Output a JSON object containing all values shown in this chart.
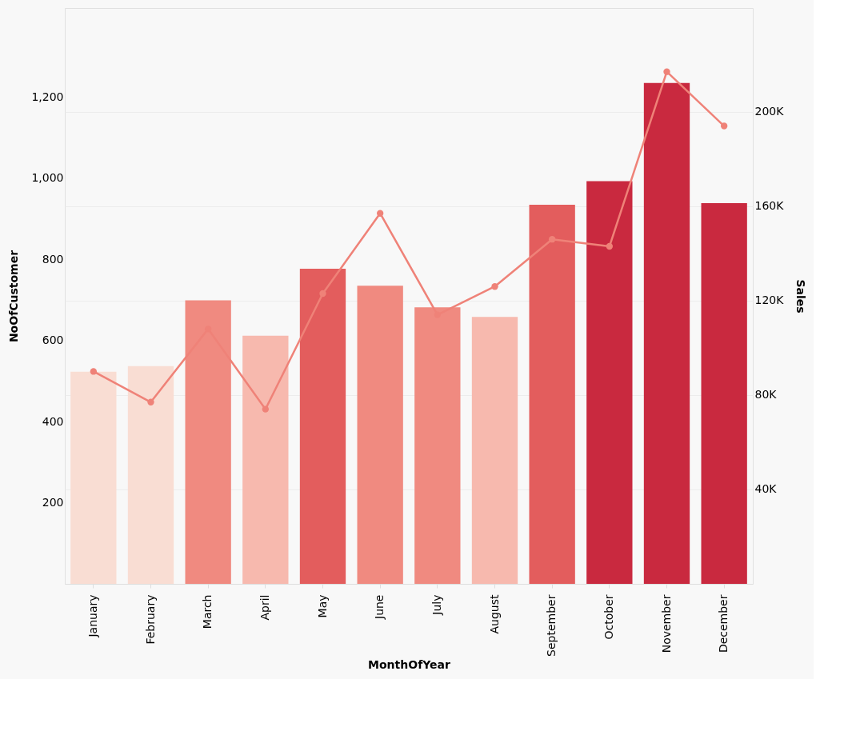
{
  "chart_data": {
    "type": "bar",
    "xlabel": "MonthOfYear",
    "ylabel": "NoOfCustomer",
    "y2label": "Sales",
    "categories": [
      "January",
      "February",
      "March",
      "April",
      "May",
      "June",
      "July",
      "August",
      "September",
      "October",
      "November",
      "December"
    ],
    "series": [
      {
        "colors": [
          "#f9ddd3",
          "#f9ddd3",
          "#f08a80",
          "#f7b9ae",
          "#e35d5d",
          "#f08a80",
          "#f08a80",
          "#f7b9ae",
          "#e35d5d",
          "#c9293f",
          "#c9293f",
          "#c9293f"
        ],
        "values": [
          523,
          537,
          699,
          612,
          777,
          735,
          682,
          658,
          935,
          993,
          1235,
          939
        ]
      },
      {
        "type": "line",
        "axis": "y2",
        "color": "#ef8278",
        "marker": "circle",
        "values": [
          90000,
          77000,
          108000,
          74000,
          123000,
          157000,
          114000,
          126000,
          146000,
          143000,
          217000,
          194000
        ]
      }
    ],
    "ylim": [
      0,
      1420
    ],
    "yticks": [
      200,
      400,
      600,
      800,
      {
        "value": 1000,
        "label": "1,000"
      },
      {
        "value": 1200,
        "label": "1,200"
      }
    ],
    "y2lim": [
      0,
      244000
    ],
    "y2ticks": [
      {
        "value": 40000,
        "label": "40K"
      },
      {
        "value": 80000,
        "label": "80K"
      },
      {
        "value": 120000,
        "label": "120K"
      },
      {
        "value": 160000,
        "label": "160K"
      },
      {
        "value": 200000,
        "label": "200K"
      }
    ],
    "grid": true
  }
}
